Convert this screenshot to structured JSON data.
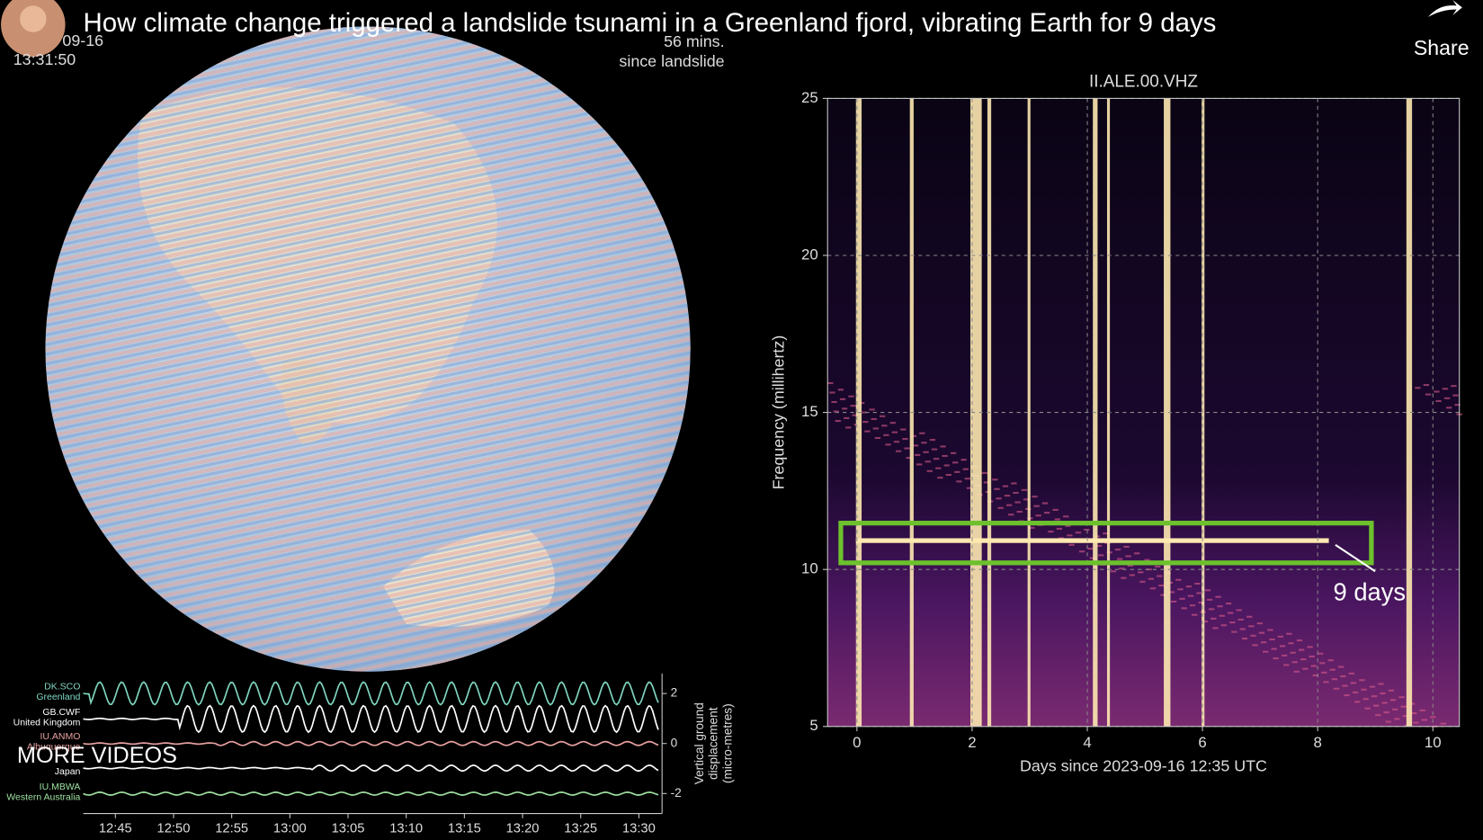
{
  "header": {
    "title": "How climate change triggered a landslide tsunami in a Greenland fjord, vibrating Earth for 9 days",
    "share": "Share"
  },
  "overlay": {
    "date": "09-16",
    "time": "13:31:50",
    "elapsed": "56 mins.",
    "elapsed_note": "since landslide",
    "more_videos": "MORE VIDEOS"
  },
  "chart_data": [
    {
      "type": "spectrogram",
      "title": "II.ALE.00.VHZ",
      "x_label": "Days since 2023-09-16 12:35 UTC",
      "y_label": "Frequency (millihertz)",
      "xlim": [
        -0.51,
        10.46
      ],
      "xticks": [
        0,
        2,
        4,
        6,
        8,
        10
      ],
      "ylim": [
        5,
        25
      ],
      "yticks": [
        5,
        10,
        15,
        20,
        25
      ],
      "grid": true,
      "annotation": "9 days",
      "highlight_color": "#6cc12c"
    },
    {
      "type": "seismogram",
      "y_label": [
        "Vertical ground",
        "displacement",
        "(micro-metres)"
      ],
      "ylim": [
        -2.8,
        2.8
      ],
      "yticks": [
        -2,
        0,
        2
      ],
      "xticks": [
        "12:45",
        "12:50",
        "12:55",
        "13:00",
        "13:05",
        "13:10",
        "13:15",
        "13:20",
        "13:25",
        "13:30"
      ],
      "stations": [
        {
          "code": "DK.SCO",
          "place": "Greenland",
          "color": "#7fd6c0"
        },
        {
          "code": "GB.CWF",
          "place": "United Kingdom",
          "color": "#ffffff"
        },
        {
          "code": "IU.ANMO",
          "place": "Albuquerque",
          "color": "#e8a0a0"
        },
        {
          "code": "",
          "place": "Japan",
          "color": "#ffffff"
        },
        {
          "code": "IU.MBWA",
          "place": "Western Australia",
          "color": "#9ee0a0"
        }
      ]
    }
  ]
}
